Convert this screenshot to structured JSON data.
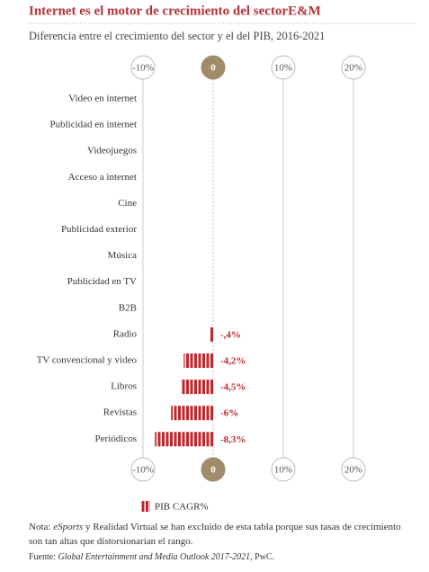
{
  "chart_data": {
    "type": "bar",
    "title": "Internet es el motor de crecimiento del sectorE&M",
    "subtitle": "Diferencia entre el crecimiento del sector y el del PIB, 2016-2021",
    "categories": [
      "Video en internet",
      "Publicidad en internet",
      "Videojuegos",
      "Acceso a internet",
      "Cine",
      "Publicidad exterior",
      "Música",
      "Publicidad en TV",
      "B2B",
      "Radio",
      "TV convencional y video",
      "Libros",
      "Revistas",
      "Periódicos"
    ],
    "series": [
      {
        "name": "PIB CAGR%",
        "color": "#c0272d",
        "values": [
          null,
          null,
          null,
          null,
          null,
          null,
          null,
          null,
          null,
          -0.4,
          -4.2,
          -4.5,
          -6,
          -8.3
        ],
        "value_labels": [
          null,
          null,
          null,
          null,
          null,
          null,
          null,
          null,
          null,
          "-,4%",
          "-4,2%",
          "-4,5%",
          "-6%",
          "-8,3%"
        ]
      }
    ],
    "xlim": [
      -10,
      20
    ],
    "xticks": [
      {
        "value": -10,
        "label": "-10%"
      },
      0,
      {
        "value": 10,
        "label": "10%"
      },
      {
        "value": 20,
        "label": "20%"
      }
    ],
    "note": [
      "Nota: ",
      "eSports",
      " y Realidad Virtual se han excluido de esta tabla porque sus tasas de crecimiento son tan altas que distorsionarían el rango."
    ],
    "source": [
      "Fuente: ",
      "Global Entertainment and Media Outlook 2017-2021",
      ",  PwC."
    ]
  }
}
